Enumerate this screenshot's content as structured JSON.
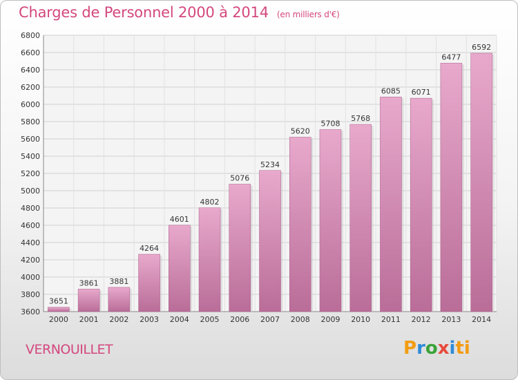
{
  "header": {
    "title": "Charges de Personnel 2000 à 2014",
    "subtitle": "(en milliers d'€)"
  },
  "footer": {
    "city": "VERNOUILLET",
    "logo": {
      "letters": [
        "P",
        "r",
        "o",
        "x",
        "i",
        "ti"
      ]
    }
  },
  "chart_data": {
    "type": "bar",
    "title": "Charges de Personnel 2000 à 2014",
    "subtitle": "(en milliers d'€)",
    "xlabel": "",
    "ylabel": "",
    "categories": [
      "2000",
      "2001",
      "2002",
      "2003",
      "2004",
      "2005",
      "2006",
      "2007",
      "2008",
      "2009",
      "2010",
      "2011",
      "2012",
      "2013",
      "2014"
    ],
    "values": [
      3651,
      3861,
      3881,
      4264,
      4601,
      4802,
      5076,
      5234,
      5620,
      5708,
      5768,
      6085,
      6071,
      6477,
      6592
    ],
    "ylim": [
      3600,
      6800
    ],
    "yticks": [
      3600,
      3800,
      4000,
      4200,
      4400,
      4600,
      4800,
      5000,
      5200,
      5400,
      5600,
      5800,
      6000,
      6200,
      6400,
      6600,
      6800
    ],
    "grid": true,
    "colors": {
      "bar": "#d98ab5",
      "bar_light": "#e6a9cb",
      "bar_dark": "#b56a94",
      "grid": "#cfcfcf",
      "accent": "#d4477e"
    }
  }
}
